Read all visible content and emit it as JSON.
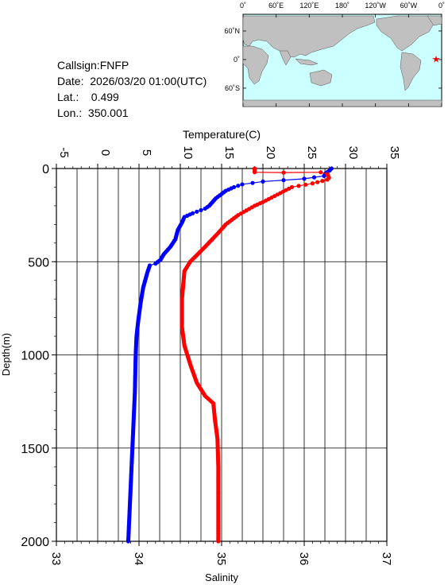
{
  "info": {
    "callsign": "Callsign:FNFP",
    "date": "Date:  2026/03/20 01:00(UTC)",
    "lat": "Lat.:    0.499",
    "lon": "Lon.:  350.001"
  },
  "map": {
    "lon_labels": [
      "0˚",
      "60˚E",
      "120˚E",
      "180˚",
      "120˚W",
      "60˚W",
      "0˚"
    ],
    "lat_labels": [
      "60˚N",
      "0˚",
      "60˚S"
    ],
    "station_lon": 350.001,
    "station_lat": 0.499,
    "colors": {
      "ocean": "#ccffff",
      "land": "#c0c0c0",
      "marker": "#ff0000"
    }
  },
  "chart_data": {
    "type": "line",
    "top_axis": {
      "label": "Temperature(C)",
      "range": [
        -5,
        35
      ],
      "ticks": [
        "-5",
        "0",
        "5",
        "10",
        "15",
        "20",
        "25",
        "30",
        "35"
      ]
    },
    "bottom_axis": {
      "label": "Salinity",
      "range": [
        33,
        37
      ],
      "ticks": [
        "33",
        "34",
        "35",
        "36",
        "37"
      ]
    },
    "y_axis": {
      "label": "Depth(m)",
      "range": [
        0,
        2000
      ],
      "inverted": true,
      "ticks": [
        "0",
        "500",
        "1000",
        "1500",
        "2000"
      ]
    },
    "grid": true,
    "series": [
      {
        "color": "#0000ff",
        "axis": "top",
        "points": [
          [
            28.3,
            0
          ],
          [
            28.1,
            10
          ],
          [
            27.6,
            25
          ],
          [
            27.4,
            40
          ],
          [
            25.0,
            55
          ],
          [
            20.0,
            70
          ],
          [
            17.5,
            85
          ],
          [
            16.5,
            100
          ],
          [
            15.5,
            120
          ],
          [
            14.3,
            160
          ],
          [
            13.5,
            200
          ],
          [
            13.0,
            215
          ],
          [
            11.5,
            240
          ],
          [
            10.5,
            260
          ],
          [
            10.2,
            290
          ],
          [
            9.7,
            330
          ],
          [
            9.4,
            380
          ],
          [
            8.8,
            420
          ],
          [
            8.0,
            460
          ],
          [
            7.6,
            490
          ],
          [
            7.0,
            510
          ],
          [
            6.3,
            520
          ],
          [
            6.0,
            560
          ],
          [
            5.5,
            640
          ],
          [
            5.2,
            720
          ],
          [
            4.9,
            820
          ],
          [
            4.7,
            900
          ],
          [
            4.6,
            1000
          ],
          [
            4.5,
            1200
          ],
          [
            4.3,
            1400
          ],
          [
            4.1,
            1600
          ],
          [
            3.9,
            1800
          ],
          [
            3.7,
            2000
          ]
        ]
      },
      {
        "color": "#ff0000",
        "axis": "bottom",
        "points": [
          [
            35.4,
            0
          ],
          [
            35.4,
            20
          ],
          [
            35.75,
            22
          ],
          [
            36.2,
            20
          ],
          [
            36.28,
            30
          ],
          [
            36.3,
            50
          ],
          [
            36.28,
            60
          ],
          [
            36.1,
            80
          ],
          [
            35.85,
            100
          ],
          [
            35.5,
            180
          ],
          [
            35.4,
            200
          ],
          [
            35.2,
            250
          ],
          [
            35.05,
            300
          ],
          [
            34.95,
            350
          ],
          [
            34.8,
            420
          ],
          [
            34.62,
            500
          ],
          [
            34.55,
            550
          ],
          [
            34.52,
            700
          ],
          [
            34.52,
            850
          ],
          [
            34.55,
            950
          ],
          [
            34.62,
            1050
          ],
          [
            34.7,
            1150
          ],
          [
            34.8,
            1220
          ],
          [
            34.9,
            1260
          ],
          [
            34.92,
            1350
          ],
          [
            34.95,
            1450
          ],
          [
            34.96,
            1600
          ],
          [
            34.96,
            1800
          ],
          [
            34.96,
            2000
          ]
        ]
      }
    ]
  }
}
